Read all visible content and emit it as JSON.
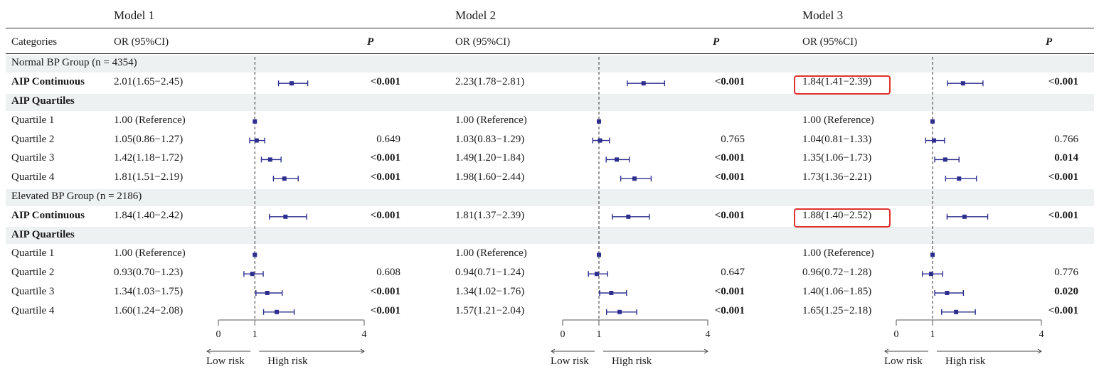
{
  "models": [
    {
      "title": "Model 1",
      "or_header": "OR (95%CI)",
      "p_header": "P"
    },
    {
      "title": "Model 2",
      "or_header": "OR (95%CI)",
      "p_header": "P"
    },
    {
      "title": "Model 3",
      "or_header": "OR (95%CI)",
      "p_header": "P"
    }
  ],
  "categories_header": "Categories",
  "rows": [
    {
      "label": "Normal BP Group (n = 4354)",
      "type": "group"
    },
    {
      "label": "AIP Continuous",
      "type": "data",
      "bold": true,
      "or": [
        "2.01(1.65−2.45)",
        "2.23(1.78−2.81)",
        "1.84(1.41−2.39)"
      ],
      "p": [
        "<0.001",
        "<0.001",
        "<0.001"
      ],
      "p_bold": [
        true,
        true,
        true
      ]
    },
    {
      "label": "AIP Quartiles",
      "type": "subgroup"
    },
    {
      "label": "Quartile 1",
      "type": "data",
      "or": [
        "1.00 (Reference)",
        "1.00 (Reference)",
        "1.00 (Reference)"
      ],
      "p": [
        "",
        "",
        ""
      ],
      "p_bold": [
        false,
        false,
        false
      ]
    },
    {
      "label": "Quartile 2",
      "type": "data",
      "or": [
        "1.05(0.86−1.27)",
        "1.03(0.83−1.29)",
        "1.04(0.81−1.33)"
      ],
      "p": [
        "0.649",
        "0.765",
        "0.766"
      ],
      "p_bold": [
        false,
        false,
        false
      ]
    },
    {
      "label": "Quartile 3",
      "type": "data",
      "or": [
        "1.42(1.18−1.72)",
        "1.49(1.20−1.84)",
        "1.35(1.06−1.73)"
      ],
      "p": [
        "<0.001",
        "<0.001",
        "0.014"
      ],
      "p_bold": [
        true,
        true,
        true
      ]
    },
    {
      "label": "Quartile 4",
      "type": "data",
      "or": [
        "1.81(1.51−2.19)",
        "1.98(1.60−2.44)",
        "1.73(1.36−2.21)"
      ],
      "p": [
        "<0.001",
        "<0.001",
        "<0.001"
      ],
      "p_bold": [
        true,
        true,
        true
      ]
    },
    {
      "label": "Elevated BP Group (n = 2186)",
      "type": "group"
    },
    {
      "label": "AIP Continuous",
      "type": "data",
      "bold": true,
      "or": [
        "1.84(1.40−2.42)",
        "1.81(1.37−2.39)",
        "1.88(1.40−2.52)"
      ],
      "p": [
        "<0.001",
        "<0.001",
        "<0.001"
      ],
      "p_bold": [
        true,
        true,
        true
      ]
    },
    {
      "label": "AIP Quartiles",
      "type": "subgroup"
    },
    {
      "label": "Quartile 1",
      "type": "data",
      "or": [
        "1.00 (Reference)",
        "1.00 (Reference)",
        "1.00 (Reference)"
      ],
      "p": [
        "",
        "",
        ""
      ],
      "p_bold": [
        false,
        false,
        false
      ]
    },
    {
      "label": "Quartile 2",
      "type": "data",
      "or": [
        "0.93(0.70−1.23)",
        "0.94(0.71−1.24)",
        "0.96(0.72−1.28)"
      ],
      "p": [
        "0.608",
        "0.647",
        "0.776"
      ],
      "p_bold": [
        false,
        false,
        false
      ]
    },
    {
      "label": "Quartile 3",
      "type": "data",
      "or": [
        "1.34(1.03−1.75)",
        "1.34(1.02−1.76)",
        "1.40(1.06−1.85)"
      ],
      "p": [
        "<0.001",
        "<0.001",
        "0.020"
      ],
      "p_bold": [
        true,
        true,
        true
      ]
    },
    {
      "label": "Quartile 4",
      "type": "data",
      "or": [
        "1.60(1.24−2.08)",
        "1.57(1.21−2.04)",
        "1.65(1.25−2.18)"
      ],
      "p": [
        "<0.001",
        "<0.001",
        "<0.001"
      ],
      "p_bold": [
        true,
        true,
        true
      ]
    }
  ],
  "axis": {
    "ticks": [
      0,
      1,
      4
    ],
    "low_label": "Low risk",
    "high_label": "High risk"
  },
  "highlighted": [
    {
      "row": 1,
      "model": 2
    },
    {
      "row": 8,
      "model": 2
    }
  ],
  "colors": {
    "marker": "#2e2e8f",
    "highlight": "#e0312b",
    "band": "#eef1f1",
    "refline": "#333333"
  },
  "chart_data": {
    "type": "forest",
    "x_scale": "linear",
    "xlim": [
      0,
      4
    ],
    "reference_line": 1,
    "panels": [
      {
        "name": "Model 1",
        "estimates": [
          {
            "row": "Normal BP Group (n = 4354) / AIP Continuous",
            "or": 2.01,
            "lo": 1.65,
            "hi": 2.45
          },
          {
            "row": "Normal BP Group (n = 4354) / Quartile 1",
            "or": 1.0,
            "lo": 1.0,
            "hi": 1.0
          },
          {
            "row": "Normal BP Group (n = 4354) / Quartile 2",
            "or": 1.05,
            "lo": 0.86,
            "hi": 1.27
          },
          {
            "row": "Normal BP Group (n = 4354) / Quartile 3",
            "or": 1.42,
            "lo": 1.18,
            "hi": 1.72
          },
          {
            "row": "Normal BP Group (n = 4354) / Quartile 4",
            "or": 1.81,
            "lo": 1.51,
            "hi": 2.19
          },
          {
            "row": "Elevated BP Group (n = 2186) / AIP Continuous",
            "or": 1.84,
            "lo": 1.4,
            "hi": 2.42
          },
          {
            "row": "Elevated BP Group (n = 2186) / Quartile 1",
            "or": 1.0,
            "lo": 1.0,
            "hi": 1.0
          },
          {
            "row": "Elevated BP Group (n = 2186) / Quartile 2",
            "or": 0.93,
            "lo": 0.7,
            "hi": 1.23
          },
          {
            "row": "Elevated BP Group (n = 2186) / Quartile 3",
            "or": 1.34,
            "lo": 1.03,
            "hi": 1.75
          },
          {
            "row": "Elevated BP Group (n = 2186) / Quartile 4",
            "or": 1.6,
            "lo": 1.24,
            "hi": 2.08
          }
        ]
      },
      {
        "name": "Model 2",
        "estimates": [
          {
            "row": "Normal BP Group (n = 4354) / AIP Continuous",
            "or": 2.23,
            "lo": 1.78,
            "hi": 2.81
          },
          {
            "row": "Normal BP Group (n = 4354) / Quartile 1",
            "or": 1.0,
            "lo": 1.0,
            "hi": 1.0
          },
          {
            "row": "Normal BP Group (n = 4354) / Quartile 2",
            "or": 1.03,
            "lo": 0.83,
            "hi": 1.29
          },
          {
            "row": "Normal BP Group (n = 4354) / Quartile 3",
            "or": 1.49,
            "lo": 1.2,
            "hi": 1.84
          },
          {
            "row": "Normal BP Group (n = 4354) / Quartile 4",
            "or": 1.98,
            "lo": 1.6,
            "hi": 2.44
          },
          {
            "row": "Elevated BP Group (n = 2186) / AIP Continuous",
            "or": 1.81,
            "lo": 1.37,
            "hi": 2.39
          },
          {
            "row": "Elevated BP Group (n = 2186) / Quartile 1",
            "or": 1.0,
            "lo": 1.0,
            "hi": 1.0
          },
          {
            "row": "Elevated BP Group (n = 2186) / Quartile 2",
            "or": 0.94,
            "lo": 0.71,
            "hi": 1.24
          },
          {
            "row": "Elevated BP Group (n = 2186) / Quartile 3",
            "or": 1.34,
            "lo": 1.02,
            "hi": 1.76
          },
          {
            "row": "Elevated BP Group (n = 2186) / Quartile 4",
            "or": 1.57,
            "lo": 1.21,
            "hi": 2.04
          }
        ]
      },
      {
        "name": "Model 3",
        "estimates": [
          {
            "row": "Normal BP Group (n = 4354) / AIP Continuous",
            "or": 1.84,
            "lo": 1.41,
            "hi": 2.39
          },
          {
            "row": "Normal BP Group (n = 4354) / Quartile 1",
            "or": 1.0,
            "lo": 1.0,
            "hi": 1.0
          },
          {
            "row": "Normal BP Group (n = 4354) / Quartile 2",
            "or": 1.04,
            "lo": 0.81,
            "hi": 1.33
          },
          {
            "row": "Normal BP Group (n = 4354) / Quartile 3",
            "or": 1.35,
            "lo": 1.06,
            "hi": 1.73
          },
          {
            "row": "Normal BP Group (n = 4354) / Quartile 4",
            "or": 1.73,
            "lo": 1.36,
            "hi": 2.21
          },
          {
            "row": "Elevated BP Group (n = 2186) / AIP Continuous",
            "or": 1.88,
            "lo": 1.4,
            "hi": 2.52
          },
          {
            "row": "Elevated BP Group (n = 2186) / Quartile 1",
            "or": 1.0,
            "lo": 1.0,
            "hi": 1.0
          },
          {
            "row": "Elevated BP Group (n = 2186) / Quartile 2",
            "or": 0.96,
            "lo": 0.72,
            "hi": 1.28
          },
          {
            "row": "Elevated BP Group (n = 2186) / Quartile 3",
            "or": 1.4,
            "lo": 1.06,
            "hi": 1.85
          },
          {
            "row": "Elevated BP Group (n = 2186) / Quartile 4",
            "or": 1.65,
            "lo": 1.25,
            "hi": 2.18
          }
        ]
      }
    ]
  }
}
